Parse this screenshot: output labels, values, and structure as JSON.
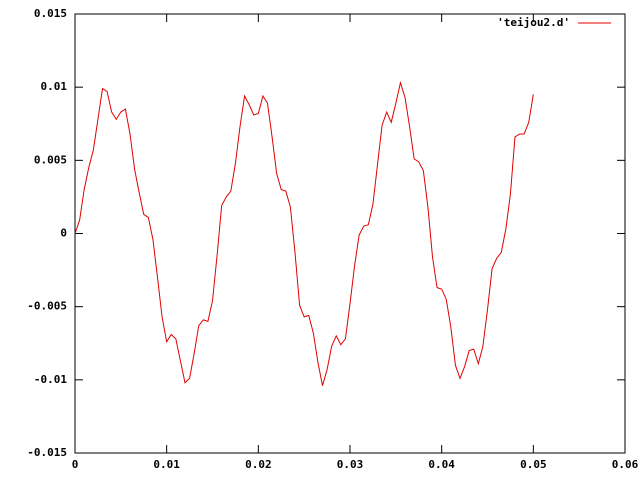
{
  "chart_data": {
    "type": "line",
    "x": [
      0,
      0.0005,
      0.001,
      0.0015,
      0.002,
      0.0025,
      0.003,
      0.0035,
      0.004,
      0.0045,
      0.005,
      0.0055,
      0.006,
      0.0065,
      0.007,
      0.0075,
      0.008,
      0.0085,
      0.009,
      0.0095,
      0.01,
      0.0105,
      0.011,
      0.0115,
      0.012,
      0.0125,
      0.013,
      0.0135,
      0.014,
      0.0145,
      0.015,
      0.0155,
      0.016,
      0.0165,
      0.017,
      0.0175,
      0.018,
      0.0185,
      0.019,
      0.0195,
      0.02,
      0.0205,
      0.021,
      0.0215,
      0.022,
      0.0225,
      0.023,
      0.0235,
      0.024,
      0.0245,
      0.025,
      0.0255,
      0.026,
      0.0265,
      0.027,
      0.0275,
      0.028,
      0.0285,
      0.029,
      0.0295,
      0.03,
      0.0305,
      0.031,
      0.0315,
      0.032,
      0.0325,
      0.033,
      0.0335,
      0.034,
      0.0345,
      0.035,
      0.0355,
      0.036,
      0.0365,
      0.037,
      0.0375,
      0.038,
      0.0385,
      0.039,
      0.0395,
      0.04,
      0.0405,
      0.041,
      0.0415,
      0.042,
      0.0425,
      0.043,
      0.0435,
      0.044,
      0.0445,
      0.045,
      0.0455,
      0.046,
      0.0465,
      0.047,
      0.0475,
      0.048,
      0.0485,
      0.049,
      0.0495,
      0.05
    ],
    "series": [
      {
        "name": "'teijou2.d'",
        "color": "#e00000",
        "values": [
          0,
          0.0009,
          0.003,
          0.0045,
          0.0057,
          0.0078,
          0.0099,
          0.0097,
          0.0083,
          0.0078,
          0.0083,
          0.0085,
          0.0068,
          0.0044,
          0.0028,
          0.0013,
          0.0011,
          -0.0004,
          -0.003,
          -0.0057,
          -0.0074,
          -0.0069,
          -0.0072,
          -0.0087,
          -0.0102,
          -0.0099,
          -0.0082,
          -0.0063,
          -0.0059,
          -0.006,
          -0.0046,
          -0.0015,
          0.0019,
          0.0025,
          0.0029,
          0.0048,
          0.0073,
          0.0094,
          0.0088,
          0.0081,
          0.0082,
          0.0094,
          0.0089,
          0.0066,
          0.0041,
          0.003,
          0.0029,
          0.0018,
          -0.0013,
          -0.0049,
          -0.0057,
          -0.0056,
          -0.0068,
          -0.0088,
          -0.0104,
          -0.0093,
          -0.0077,
          -0.007,
          -0.0076,
          -0.0072,
          -0.0048,
          -0.0022,
          -0.0001,
          0.0005,
          0.0006,
          0.002,
          0.0047,
          0.0074,
          0.0083,
          0.0076,
          0.0089,
          0.0103,
          0.0093,
          0.0073,
          0.0051,
          0.0049,
          0.0043,
          0.0018,
          -0.0016,
          -0.0037,
          -0.0038,
          -0.0045,
          -0.0064,
          -0.009,
          -0.0099,
          -0.0091,
          -0.008,
          -0.0079,
          -0.0089,
          -0.0077,
          -0.0052,
          -0.0024,
          -0.0017,
          -0.0013,
          0.0003,
          0.0027,
          0.0066,
          0.0068,
          0.0068,
          0.0076,
          0.0095
        ]
      }
    ],
    "xlim": [
      0,
      0.06
    ],
    "xticks": [
      0,
      0.01,
      0.02,
      0.03,
      0.04,
      0.05,
      0.06
    ],
    "ylim": [
      -0.015,
      0.015
    ],
    "yticks": [
      -0.015,
      -0.01,
      -0.005,
      0,
      0.005,
      0.01,
      0.015
    ],
    "legend": "top right"
  }
}
